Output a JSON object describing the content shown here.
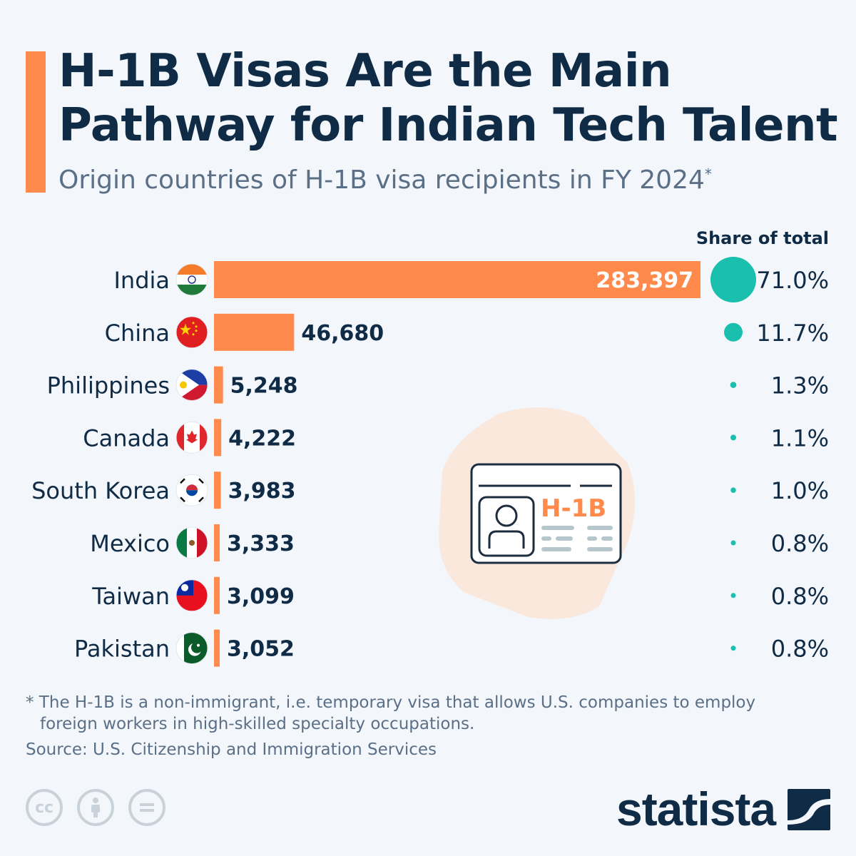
{
  "header": {
    "title_line1": "H-1B Visas Are the Main",
    "title_line2": "Pathway for Indian Tech Talent",
    "subtitle": "Origin countries of H-1B visa recipients in FY 2024",
    "subtitle_marker": "*"
  },
  "colors": {
    "bar": "#ff8a4c",
    "bubble": "#1bbfae",
    "text": "#0f2b46",
    "muted": "#5b6f87"
  },
  "chart_data": {
    "type": "bar",
    "orientation": "horizontal",
    "categories": [
      "India",
      "China",
      "Philippines",
      "Canada",
      "South Korea",
      "Mexico",
      "Taiwan",
      "Pakistan"
    ],
    "flag_icons": [
      "india-flag-icon",
      "china-flag-icon",
      "philippines-flag-icon",
      "canada-flag-icon",
      "south-korea-flag-icon",
      "mexico-flag-icon",
      "taiwan-flag-icon",
      "pakistan-flag-icon"
    ],
    "values": [
      283397,
      46680,
      5248,
      4222,
      3983,
      3333,
      3099,
      3052
    ],
    "value_labels": [
      "283,397",
      "46,680",
      "5,248",
      "4,222",
      "3,983",
      "3,333",
      "3,099",
      "3,052"
    ],
    "share_header": "Share of total",
    "shares": [
      71.0,
      11.7,
      1.3,
      1.1,
      1.0,
      0.8,
      0.8,
      0.8
    ],
    "share_labels": [
      "71.0%",
      "11.7%",
      "1.3%",
      "1.1%",
      "1.0%",
      "0.8%",
      "0.8%",
      "0.8%"
    ]
  },
  "illustration": {
    "card_text": "H-1B"
  },
  "footer": {
    "note_line1": "* The H-1B is a non-immigrant, i.e. temporary visa that allows U.S. companies to employ",
    "note_line2": "foreign workers in high-skilled specialty occupations.",
    "source": "Source: U.S. Citizenship and Immigration Services",
    "cc_label": "cc",
    "brand": "statista"
  }
}
